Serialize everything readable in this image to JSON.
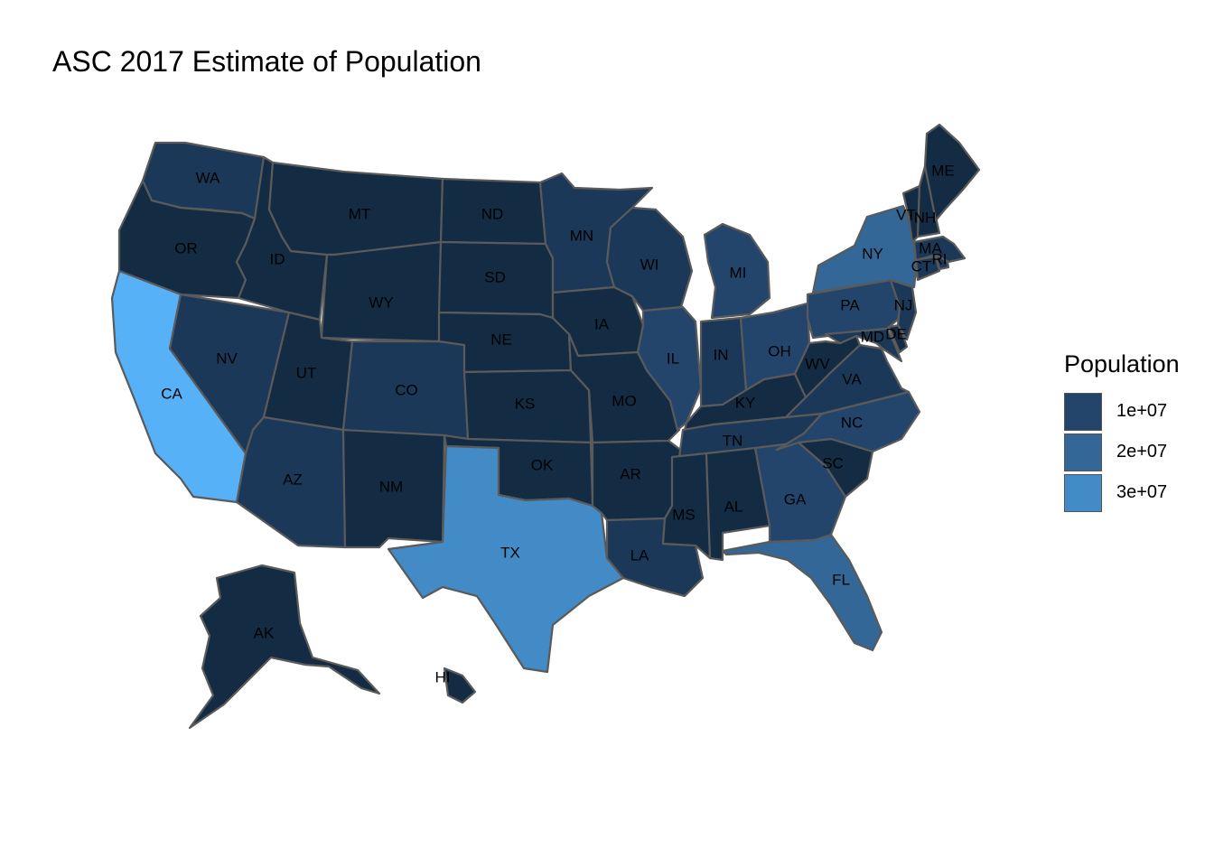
{
  "title": "ASC 2017 Estimate of Population",
  "legend": {
    "title": "Population",
    "keys": [
      {
        "label": "1e+07",
        "color": "#24456b"
      },
      {
        "label": "2e+07",
        "color": "#326797"
      },
      {
        "label": "3e+07",
        "color": "#428bc6"
      }
    ]
  },
  "colors": {
    "tier0": "#132b43",
    "tier1": "#1c3858",
    "tier2": "#24456b",
    "tier3": "#326797",
    "tier4": "#428bc6",
    "tier5": "#56b1f7",
    "border": "#5a5a5a"
  },
  "states": {
    "WA": "WA",
    "OR": "OR",
    "CA": "CA",
    "NV": "NV",
    "ID": "ID",
    "MT": "MT",
    "WY": "WY",
    "UT": "UT",
    "AZ": "AZ",
    "CO": "CO",
    "NM": "NM",
    "ND": "ND",
    "SD": "SD",
    "NE": "NE",
    "KS": "KS",
    "OK": "OK",
    "TX": "TX",
    "MN": "MN",
    "IA": "IA",
    "MO": "MO",
    "AR": "AR",
    "LA": "LA",
    "WI": "WI",
    "IL": "IL",
    "MI": "MI",
    "IN": "IN",
    "OH": "OH",
    "KY": "KY",
    "TN": "TN",
    "MS": "MS",
    "AL": "AL",
    "GA": "GA",
    "FL": "FL",
    "SC": "SC",
    "NC": "NC",
    "VA": "VA",
    "WV": "WV",
    "PA": "PA",
    "NY": "NY",
    "NJ": "NJ",
    "DE": "DE",
    "MD": "MD",
    "CT": "CT",
    "RI": "RI",
    "MA": "MA",
    "VT": "VT",
    "NH": "NH",
    "ME": "ME",
    "AK": "AK",
    "HI": "HI"
  }
}
